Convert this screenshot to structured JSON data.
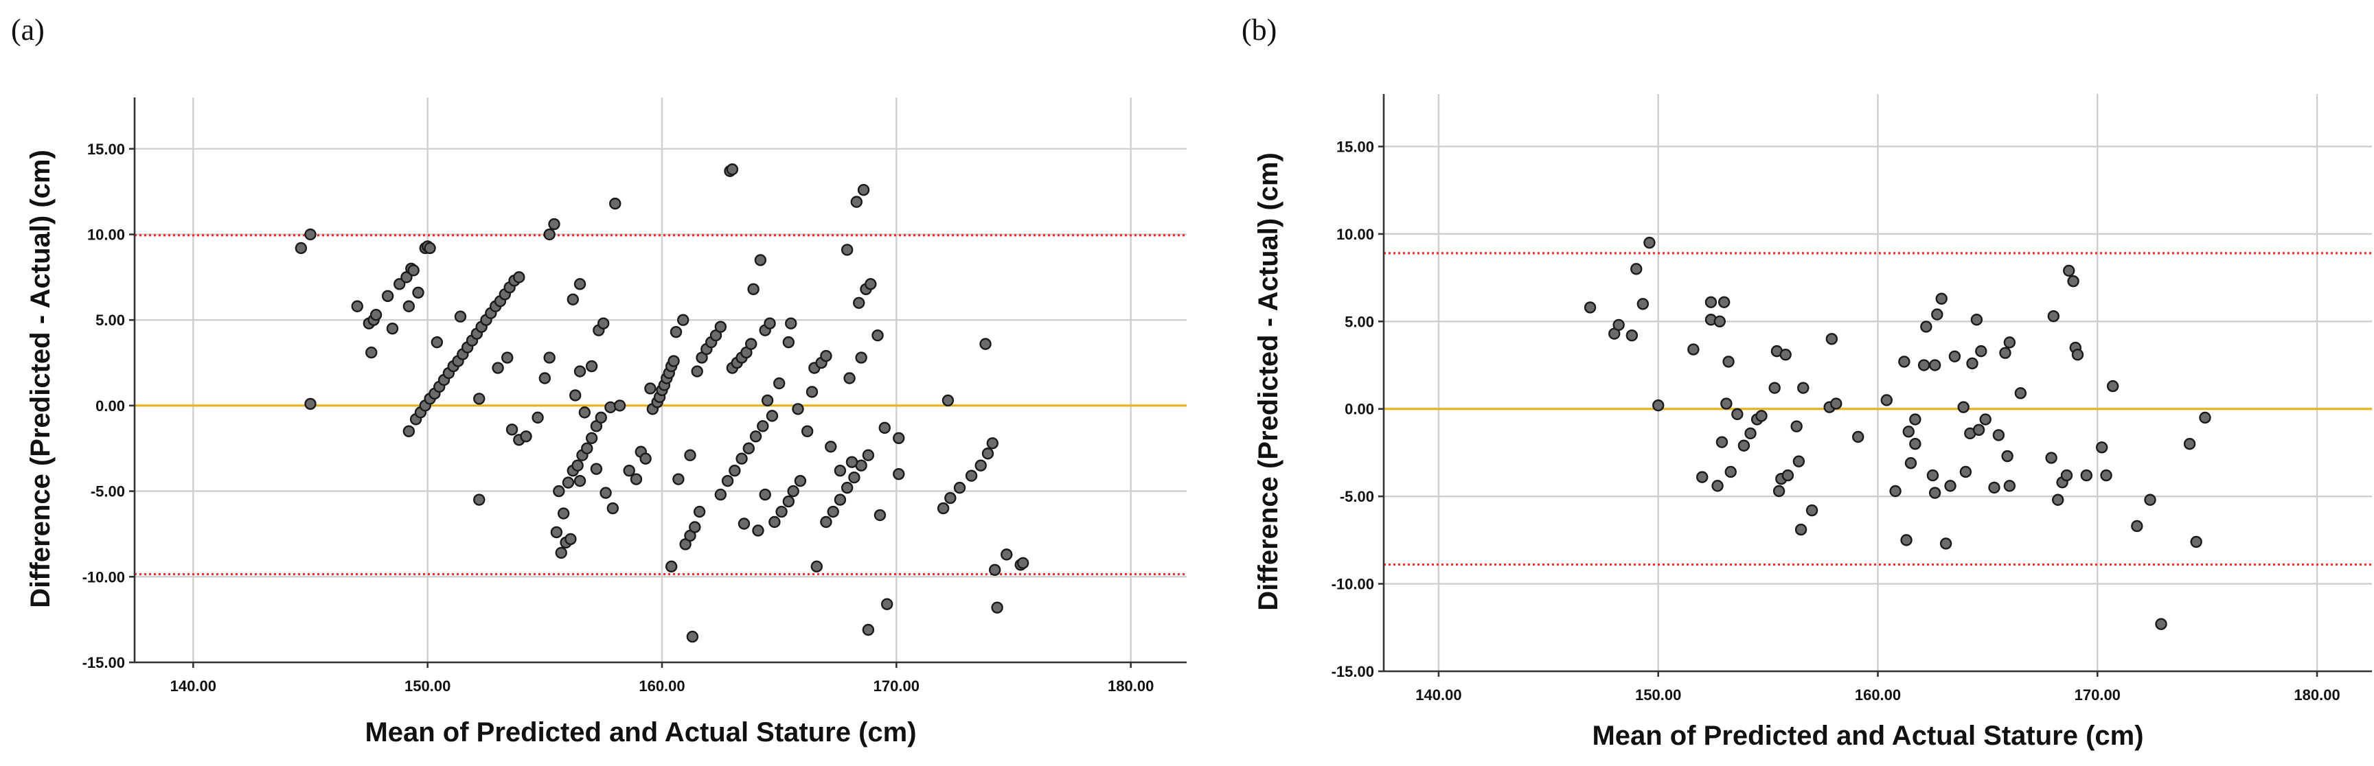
{
  "chart_data": [
    {
      "type": "scatter",
      "panel_label": "(a)",
      "title": "",
      "xlabel": "Mean of Predicted and Actual Stature (cm)",
      "ylabel": "Difference (Predicted - Actual) (cm)",
      "xlim": [
        137.5,
        182.5
      ],
      "ylim": [
        -15,
        18
      ],
      "xticks": [
        140,
        150,
        160,
        170,
        180
      ],
      "xtick_labels": [
        "140.00",
        "150.00",
        "160.00",
        "170.00",
        "180.00"
      ],
      "yticks": [
        -15,
        -10,
        -5,
        0,
        5,
        10,
        15
      ],
      "ytick_labels": [
        "-15.00",
        "-10.00",
        "-5.00",
        "0.00",
        "5.00",
        "10.00",
        "15.00"
      ],
      "grid": true,
      "mean_line": {
        "value": 0.0,
        "color": "#e6b422",
        "style": "solid"
      },
      "limits_of_agreement": {
        "upper": 9.95,
        "lower": -9.85,
        "color": "#ff2a2a",
        "style": "dotted"
      },
      "point_color": "#6b6b6b",
      "points": [
        [
          144.6,
          9.2
        ],
        [
          145.0,
          10.0
        ],
        [
          145.0,
          0.1
        ],
        [
          147.0,
          5.8
        ],
        [
          147.5,
          4.8
        ],
        [
          147.6,
          3.1
        ],
        [
          147.7,
          5.0
        ],
        [
          147.8,
          5.3
        ],
        [
          148.3,
          6.4
        ],
        [
          148.5,
          4.5
        ],
        [
          148.8,
          7.1
        ],
        [
          149.1,
          7.5
        ],
        [
          149.2,
          5.8
        ],
        [
          149.3,
          8.0
        ],
        [
          149.4,
          7.9
        ],
        [
          149.6,
          6.6
        ],
        [
          149.9,
          9.2
        ],
        [
          150.0,
          9.3
        ],
        [
          150.1,
          9.2
        ],
        [
          149.2,
          -1.5
        ],
        [
          149.5,
          -0.8
        ],
        [
          149.7,
          -0.4
        ],
        [
          149.9,
          0.0
        ],
        [
          150.1,
          0.4
        ],
        [
          150.3,
          0.7
        ],
        [
          150.5,
          1.1
        ],
        [
          150.7,
          1.5
        ],
        [
          150.9,
          1.9
        ],
        [
          151.1,
          2.3
        ],
        [
          151.3,
          2.6
        ],
        [
          151.5,
          3.0
        ],
        [
          151.7,
          3.4
        ],
        [
          151.9,
          3.8
        ],
        [
          152.1,
          4.2
        ],
        [
          152.3,
          4.6
        ],
        [
          152.5,
          5.0
        ],
        [
          152.7,
          5.4
        ],
        [
          152.9,
          5.8
        ],
        [
          153.1,
          6.1
        ],
        [
          153.3,
          6.5
        ],
        [
          153.5,
          6.9
        ],
        [
          153.7,
          7.3
        ],
        [
          153.9,
          7.5
        ],
        [
          150.4,
          3.7
        ],
        [
          151.4,
          5.2
        ],
        [
          152.2,
          -5.5
        ],
        [
          152.2,
          0.4
        ],
        [
          153.0,
          2.2
        ],
        [
          153.4,
          2.8
        ],
        [
          153.6,
          -1.4
        ],
        [
          153.9,
          -2.0
        ],
        [
          154.2,
          -1.8
        ],
        [
          154.7,
          -0.7
        ],
        [
          155.0,
          1.6
        ],
        [
          155.2,
          10.0
        ],
        [
          155.4,
          10.6
        ],
        [
          155.2,
          2.8
        ],
        [
          155.5,
          -7.4
        ],
        [
          155.6,
          -5.0
        ],
        [
          155.7,
          -8.6
        ],
        [
          155.8,
          -6.3
        ],
        [
          155.9,
          -8.0
        ],
        [
          156.0,
          -4.5
        ],
        [
          156.1,
          -7.8
        ],
        [
          156.2,
          -3.8
        ],
        [
          156.4,
          -3.5
        ],
        [
          156.5,
          -4.4
        ],
        [
          156.6,
          -2.9
        ],
        [
          156.8,
          -2.5
        ],
        [
          157.0,
          -1.9
        ],
        [
          157.2,
          -1.2
        ],
        [
          157.4,
          -0.7
        ],
        [
          156.3,
          0.6
        ],
        [
          156.5,
          2.0
        ],
        [
          157.0,
          2.3
        ],
        [
          156.2,
          6.2
        ],
        [
          156.5,
          7.1
        ],
        [
          157.3,
          4.4
        ],
        [
          157.5,
          4.8
        ],
        [
          157.8,
          -0.1
        ],
        [
          157.6,
          -5.1
        ],
        [
          157.9,
          -6.0
        ],
        [
          157.2,
          -3.7
        ],
        [
          156.7,
          -0.4
        ],
        [
          158.0,
          11.8
        ],
        [
          158.2,
          0.0
        ],
        [
          158.6,
          -3.8
        ],
        [
          158.9,
          -4.3
        ],
        [
          159.1,
          -2.7
        ],
        [
          159.3,
          -3.1
        ],
        [
          159.5,
          1.0
        ],
        [
          159.6,
          -0.2
        ],
        [
          159.8,
          0.2
        ],
        [
          159.9,
          0.5
        ],
        [
          160.0,
          0.9
        ],
        [
          160.1,
          1.2
        ],
        [
          160.2,
          1.6
        ],
        [
          160.3,
          1.9
        ],
        [
          160.4,
          2.3
        ],
        [
          160.5,
          2.6
        ],
        [
          160.6,
          4.3
        ],
        [
          160.9,
          5.0
        ],
        [
          160.4,
          -9.4
        ],
        [
          160.7,
          -4.3
        ],
        [
          161.0,
          -8.1
        ],
        [
          161.2,
          -7.6
        ],
        [
          161.4,
          -7.1
        ],
        [
          161.6,
          -6.2
        ],
        [
          161.3,
          -13.5
        ],
        [
          161.2,
          -2.9
        ],
        [
          161.5,
          2.0
        ],
        [
          161.7,
          2.8
        ],
        [
          161.9,
          3.3
        ],
        [
          162.1,
          3.7
        ],
        [
          162.3,
          4.1
        ],
        [
          162.5,
          4.6
        ],
        [
          162.9,
          13.7
        ],
        [
          163.0,
          13.8
        ],
        [
          162.5,
          -5.2
        ],
        [
          162.8,
          -4.4
        ],
        [
          163.1,
          -3.8
        ],
        [
          163.4,
          -3.1
        ],
        [
          163.7,
          -2.5
        ],
        [
          164.0,
          -1.8
        ],
        [
          164.3,
          -1.2
        ],
        [
          164.5,
          0.3
        ],
        [
          164.7,
          -0.6
        ],
        [
          163.0,
          2.2
        ],
        [
          163.2,
          2.5
        ],
        [
          163.4,
          2.8
        ],
        [
          163.6,
          3.1
        ],
        [
          163.8,
          3.6
        ],
        [
          163.9,
          6.8
        ],
        [
          164.2,
          8.5
        ],
        [
          164.4,
          4.4
        ],
        [
          164.6,
          4.8
        ],
        [
          165.0,
          1.3
        ],
        [
          165.4,
          3.7
        ],
        [
          165.5,
          4.8
        ],
        [
          163.5,
          -6.9
        ],
        [
          164.1,
          -7.3
        ],
        [
          164.4,
          -5.2
        ],
        [
          164.8,
          -6.8
        ],
        [
          165.1,
          -6.2
        ],
        [
          165.4,
          -5.6
        ],
        [
          165.6,
          -5.0
        ],
        [
          165.9,
          -4.4
        ],
        [
          165.8,
          -0.2
        ],
        [
          166.2,
          -1.5
        ],
        [
          166.4,
          0.8
        ],
        [
          166.5,
          2.2
        ],
        [
          166.8,
          2.5
        ],
        [
          167.0,
          2.9
        ],
        [
          166.6,
          -9.4
        ],
        [
          167.0,
          -6.8
        ],
        [
          167.3,
          -6.2
        ],
        [
          167.6,
          -5.5
        ],
        [
          167.9,
          -4.8
        ],
        [
          168.2,
          -4.2
        ],
        [
          168.5,
          -3.5
        ],
        [
          168.8,
          -2.9
        ],
        [
          167.2,
          -2.4
        ],
        [
          167.6,
          -3.8
        ],
        [
          167.9,
          9.1
        ],
        [
          168.0,
          1.6
        ],
        [
          168.3,
          11.9
        ],
        [
          168.6,
          12.6
        ],
        [
          168.4,
          6.0
        ],
        [
          168.7,
          6.8
        ],
        [
          168.9,
          7.1
        ],
        [
          168.8,
          -13.1
        ],
        [
          169.3,
          -6.4
        ],
        [
          169.6,
          -11.6
        ],
        [
          169.2,
          4.1
        ],
        [
          169.5,
          -1.3
        ],
        [
          170.1,
          -1.9
        ],
        [
          170.1,
          -4.0
        ],
        [
          168.1,
          -3.3
        ],
        [
          168.5,
          2.8
        ],
        [
          172.0,
          -6.0
        ],
        [
          172.2,
          0.3
        ],
        [
          172.3,
          -5.4
        ],
        [
          172.7,
          -4.8
        ],
        [
          173.2,
          -4.1
        ],
        [
          173.6,
          -3.5
        ],
        [
          173.8,
          3.6
        ],
        [
          173.9,
          -2.8
        ],
        [
          174.1,
          -2.2
        ],
        [
          174.2,
          -9.6
        ],
        [
          174.3,
          -11.8
        ],
        [
          174.7,
          -8.7
        ],
        [
          175.3,
          -9.3
        ],
        [
          175.4,
          -9.2
        ]
      ]
    },
    {
      "type": "scatter",
      "panel_label": "(b)",
      "title": "",
      "xlabel": "Mean of Predicted and Actual Stature (cm)",
      "ylabel": "Difference (Predicted - Actual) (cm)",
      "xlim": [
        137.5,
        182.5
      ],
      "ylim": [
        -15,
        18
      ],
      "xticks": [
        140,
        150,
        160,
        170,
        180
      ],
      "xtick_labels": [
        "140.00",
        "150.00",
        "160.00",
        "170.00",
        "180.00"
      ],
      "yticks": [
        -15,
        -10,
        -5,
        0,
        5,
        10,
        15
      ],
      "ytick_labels": [
        "-15.00",
        "-10.00",
        "-5.00",
        "0.00",
        "5.00",
        "10.00",
        "15.00"
      ],
      "grid": true,
      "mean_line": {
        "value": 0.0,
        "color": "#e6b422",
        "style": "solid"
      },
      "limits_of_agreement": {
        "upper": 8.9,
        "lower": -8.9,
        "color": "#ff2a2a",
        "style": "dotted"
      },
      "point_color": "#6b6b6b",
      "points": [
        [
          146.9,
          5.8
        ],
        [
          148.0,
          4.3
        ],
        [
          148.2,
          4.8
        ],
        [
          148.8,
          4.2
        ],
        [
          149.0,
          8.0
        ],
        [
          149.3,
          6.0
        ],
        [
          149.6,
          9.5
        ],
        [
          150.0,
          0.2
        ],
        [
          151.6,
          3.4
        ],
        [
          152.0,
          -3.9
        ],
        [
          152.4,
          5.1
        ],
        [
          152.4,
          6.1
        ],
        [
          152.7,
          -4.4
        ],
        [
          152.8,
          5.0
        ],
        [
          152.9,
          -1.9
        ],
        [
          153.0,
          6.1
        ],
        [
          153.1,
          0.3
        ],
        [
          153.2,
          2.7
        ],
        [
          153.3,
          -3.6
        ],
        [
          153.6,
          -0.3
        ],
        [
          153.9,
          -2.1
        ],
        [
          154.2,
          -1.4
        ],
        [
          154.5,
          -0.6
        ],
        [
          154.7,
          -0.4
        ],
        [
          155.3,
          1.2
        ],
        [
          155.4,
          3.3
        ],
        [
          155.5,
          -4.7
        ],
        [
          155.6,
          -4.0
        ],
        [
          155.8,
          3.1
        ],
        [
          155.9,
          -3.8
        ],
        [
          156.3,
          -1.0
        ],
        [
          156.4,
          -3.0
        ],
        [
          156.5,
          -6.9
        ],
        [
          156.6,
          1.2
        ],
        [
          157.0,
          -5.8
        ],
        [
          157.8,
          0.1
        ],
        [
          157.9,
          4.0
        ],
        [
          158.1,
          0.3
        ],
        [
          159.1,
          -1.6
        ],
        [
          160.4,
          0.5
        ],
        [
          160.8,
          -4.7
        ],
        [
          161.2,
          2.7
        ],
        [
          161.3,
          -7.5
        ],
        [
          161.4,
          -1.3
        ],
        [
          161.5,
          -3.1
        ],
        [
          161.7,
          -2.0
        ],
        [
          161.7,
          -0.6
        ],
        [
          162.1,
          2.5
        ],
        [
          162.2,
          4.7
        ],
        [
          162.5,
          -3.8
        ],
        [
          162.6,
          -4.8
        ],
        [
          162.6,
          2.5
        ],
        [
          162.7,
          5.4
        ],
        [
          162.9,
          6.3
        ],
        [
          163.1,
          -7.7
        ],
        [
          163.3,
          -4.4
        ],
        [
          163.5,
          3.0
        ],
        [
          163.9,
          0.1
        ],
        [
          164.0,
          -3.6
        ],
        [
          164.2,
          -1.4
        ],
        [
          164.3,
          2.6
        ],
        [
          164.5,
          5.1
        ],
        [
          164.6,
          -1.2
        ],
        [
          164.7,
          3.3
        ],
        [
          164.9,
          -0.6
        ],
        [
          165.3,
          -4.5
        ],
        [
          165.5,
          -1.5
        ],
        [
          165.8,
          3.2
        ],
        [
          165.9,
          -2.7
        ],
        [
          166.0,
          3.8
        ],
        [
          166.0,
          -4.4
        ],
        [
          166.5,
          0.9
        ],
        [
          167.9,
          -2.8
        ],
        [
          168.0,
          5.3
        ],
        [
          168.2,
          -5.2
        ],
        [
          168.4,
          -4.2
        ],
        [
          168.6,
          -3.8
        ],
        [
          168.7,
          7.9
        ],
        [
          168.9,
          7.3
        ],
        [
          169.0,
          3.5
        ],
        [
          169.1,
          3.1
        ],
        [
          169.5,
          -3.8
        ],
        [
          170.2,
          -2.2
        ],
        [
          170.4,
          -3.8
        ],
        [
          170.7,
          1.3
        ],
        [
          171.8,
          -6.7
        ],
        [
          172.4,
          -5.2
        ],
        [
          172.9,
          -12.3
        ],
        [
          174.2,
          -2.0
        ],
        [
          174.5,
          -7.6
        ],
        [
          174.9,
          -0.5
        ]
      ]
    }
  ]
}
